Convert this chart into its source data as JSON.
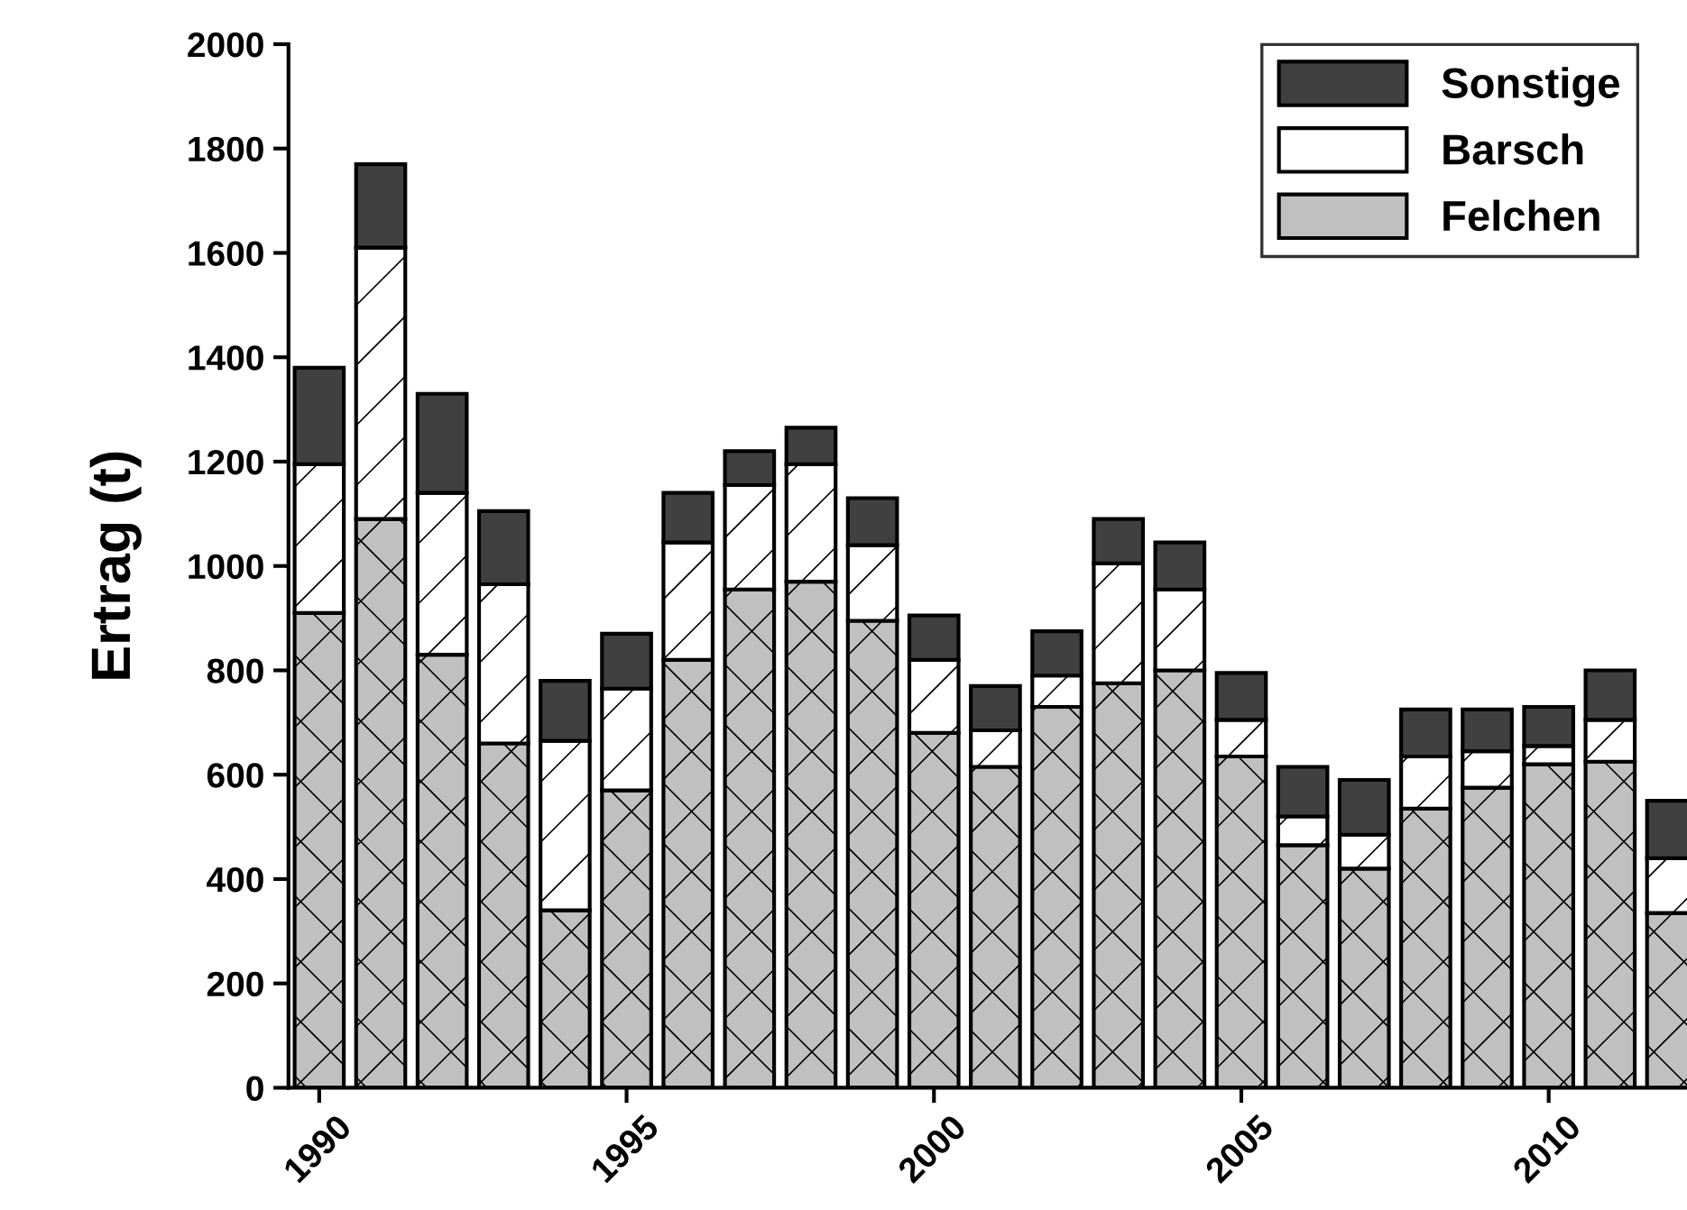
{
  "chart_data": {
    "type": "bar",
    "stacked": true,
    "ylabel": "Ertrag (t)",
    "x": [
      1990,
      1991,
      1992,
      1993,
      1994,
      1995,
      1996,
      1997,
      1998,
      1999,
      2000,
      2001,
      2002,
      2003,
      2004,
      2005,
      2006,
      2007,
      2008,
      2009,
      2010,
      2011,
      2012
    ],
    "series": [
      {
        "name": "Felchen",
        "color": "#c0c0c0",
        "values": [
          910,
          1090,
          830,
          660,
          340,
          570,
          820,
          955,
          970,
          895,
          680,
          615,
          730,
          775,
          800,
          635,
          465,
          420,
          535,
          575,
          620,
          625,
          335
        ]
      },
      {
        "name": "Barsch",
        "color": "#ffffff",
        "values": [
          285,
          520,
          310,
          305,
          325,
          195,
          225,
          200,
          225,
          145,
          140,
          70,
          60,
          230,
          155,
          70,
          55,
          65,
          100,
          70,
          35,
          80,
          105
        ]
      },
      {
        "name": "Sonstige",
        "color": "#404040",
        "values": [
          185,
          160,
          190,
          140,
          115,
          105,
          95,
          65,
          70,
          90,
          85,
          85,
          85,
          85,
          90,
          90,
          95,
          105,
          90,
          80,
          75,
          95,
          110
        ]
      }
    ],
    "xlim": [
      1989.5,
      2012.25
    ],
    "xticks": [
      1990,
      1995,
      2000,
      2005,
      2010
    ],
    "ylim": [
      0,
      2000
    ],
    "yticks": [
      0,
      200,
      400,
      600,
      800,
      1000,
      1200,
      1400,
      1600,
      1800,
      2000
    ],
    "grid": false,
    "legend": "top right"
  }
}
